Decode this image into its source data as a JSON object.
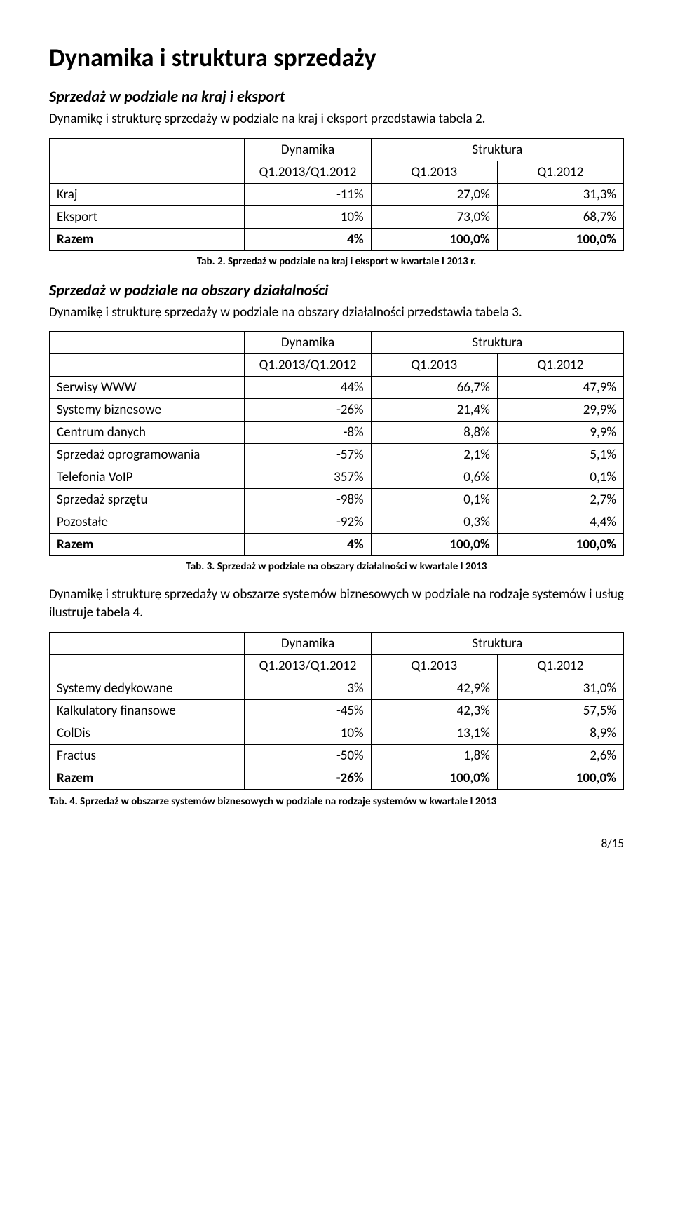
{
  "title": "Dynamika i struktura sprzedaży",
  "section1": {
    "heading": "Sprzedaż w podziale na kraj i eksport",
    "intro": "Dynamikę i strukturę sprzedaży w podziale na kraj i eksport przedstawia tabela 2.",
    "caption": "Tab. 2. Sprzedaż w podziale na kraj i eksport w kwartale I 2013 r."
  },
  "section2": {
    "heading": "Sprzedaż w podziale na obszary działalności",
    "intro": "Dynamikę i strukturę sprzedaży w podziale na obszary działalności przedstawia tabela 3.",
    "caption": "Tab. 3. Sprzedaż w podziale na obszary działalności w kwartale I 2013",
    "outro": "Dynamikę i strukturę sprzedaży w obszarze systemów biznesowych w podziale na rodzaje systemów i usług ilustruje tabela 4.",
    "caption2": "Tab. 4. Sprzedaż w obszarze systemów biznesowych w podziale na rodzaje systemów w kwartale I 2013"
  },
  "headers": {
    "dynamika": "Dynamika",
    "struktura": "Struktura",
    "col_dyn": "Q1.2013/Q1.2012",
    "col_y1": "Q1.2013",
    "col_y2": "Q1.2012"
  },
  "table1": {
    "rows": [
      {
        "label": "Kraj",
        "dyn": "-11%",
        "y1": "27,0%",
        "y2": "31,3%"
      },
      {
        "label": "Eksport",
        "dyn": "10%",
        "y1": "73,0%",
        "y2": "68,7%"
      }
    ],
    "total": {
      "label": "Razem",
      "dyn": "4%",
      "y1": "100,0%",
      "y2": "100,0%"
    }
  },
  "table2": {
    "rows": [
      {
        "label": "Serwisy WWW",
        "dyn": "44%",
        "y1": "66,7%",
        "y2": "47,9%"
      },
      {
        "label": "Systemy biznesowe",
        "dyn": "-26%",
        "y1": "21,4%",
        "y2": "29,9%"
      },
      {
        "label": "Centrum danych",
        "dyn": "-8%",
        "y1": "8,8%",
        "y2": "9,9%"
      },
      {
        "label": "Sprzedaż oprogramowania",
        "dyn": "-57%",
        "y1": "2,1%",
        "y2": "5,1%"
      },
      {
        "label": "Telefonia VoIP",
        "dyn": "357%",
        "y1": "0,6%",
        "y2": "0,1%"
      },
      {
        "label": "Sprzedaż sprzętu",
        "dyn": "-98%",
        "y1": "0,1%",
        "y2": "2,7%"
      },
      {
        "label": "Pozostałe",
        "dyn": "-92%",
        "y1": "0,3%",
        "y2": "4,4%"
      }
    ],
    "total": {
      "label": "Razem",
      "dyn": "4%",
      "y1": "100,0%",
      "y2": "100,0%"
    }
  },
  "table3": {
    "rows": [
      {
        "label": "Systemy dedykowane",
        "dyn": "3%",
        "y1": "42,9%",
        "y2": "31,0%"
      },
      {
        "label": "Kalkulatory finansowe",
        "dyn": "-45%",
        "y1": "42,3%",
        "y2": "57,5%"
      },
      {
        "label": "ColDis",
        "dyn": "10%",
        "y1": "13,1%",
        "y2": "8,9%"
      },
      {
        "label": "Fractus",
        "dyn": "-50%",
        "y1": "1,8%",
        "y2": "2,6%"
      }
    ],
    "total": {
      "label": "Razem",
      "dyn": "-26%",
      "y1": "100,0%",
      "y2": "100,0%"
    }
  },
  "footer": "8/15"
}
